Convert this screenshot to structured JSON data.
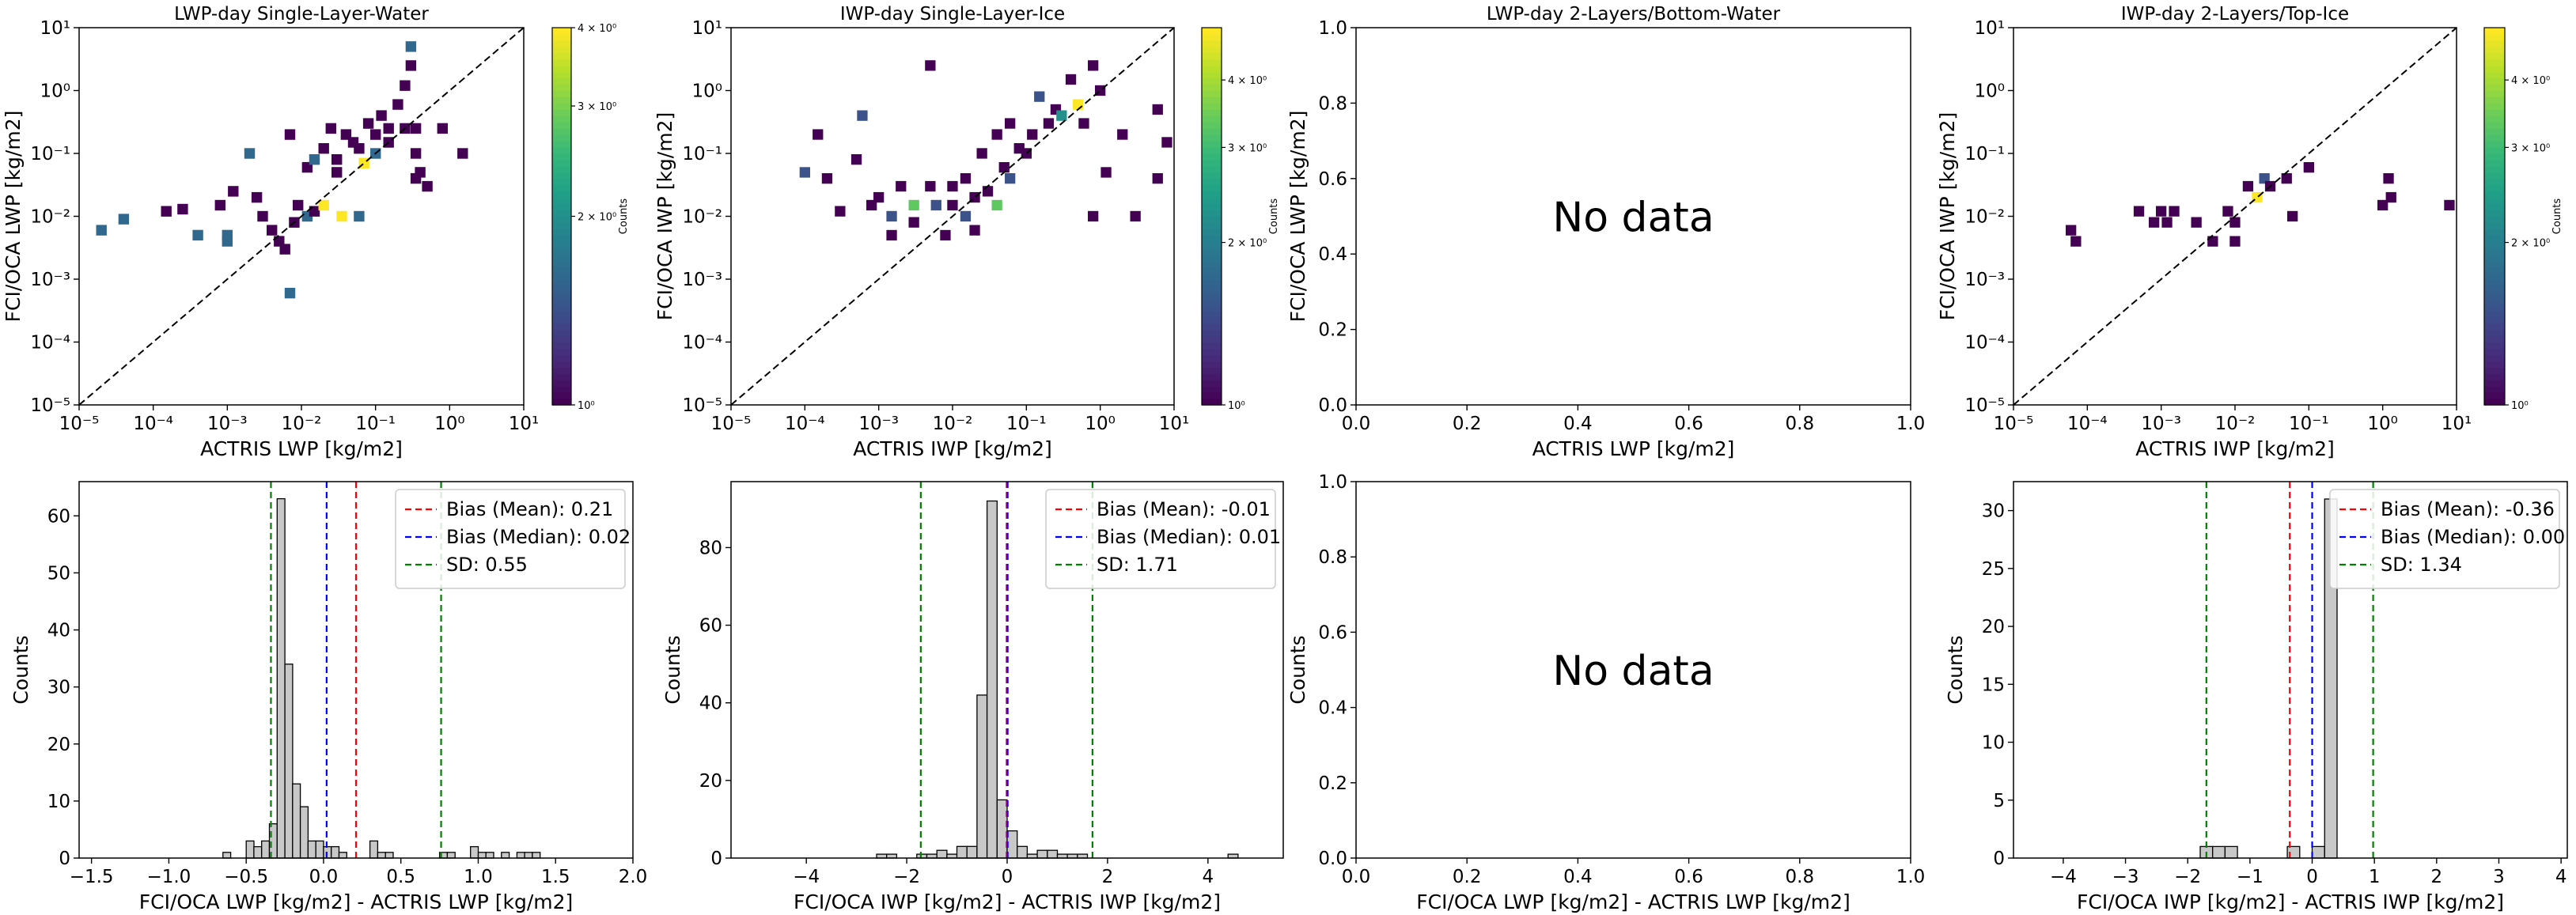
{
  "chart_data": [
    {
      "type": "heatmap",
      "title": "LWP-day Single-Layer-Water",
      "xlabel": "ACTRIS LWP [kg/m2]",
      "ylabel": "FCI/OCA LWP [kg/m2]",
      "xscale": "log",
      "yscale": "log",
      "xlim": [
        1e-05,
        10
      ],
      "ylim": [
        1e-05,
        10
      ],
      "xticks": [
        "10⁻⁵",
        "10⁻⁴",
        "10⁻³",
        "10⁻²",
        "10⁻¹",
        "10⁰",
        "10¹"
      ],
      "yticks": [
        "10⁻⁵",
        "10⁻⁴",
        "10⁻³",
        "10⁻²",
        "10⁻¹",
        "10⁰",
        "10¹"
      ],
      "one_to_one_line": true,
      "colorbar": {
        "label": "Counts",
        "ticks": [
          "10⁰",
          "2 × 10⁰",
          "3 × 10⁰",
          "4 × 10⁰"
        ],
        "range": [
          1,
          4
        ]
      },
      "cells": [
        [
          2e-05,
          0.006,
          2
        ],
        [
          4e-05,
          0.009,
          2
        ],
        [
          0.00015,
          0.012,
          1
        ],
        [
          0.00025,
          0.013,
          1
        ],
        [
          0.0004,
          0.005,
          2
        ],
        [
          0.0008,
          0.015,
          1
        ],
        [
          0.001,
          0.005,
          2
        ],
        [
          0.001,
          0.004,
          2
        ],
        [
          0.0012,
          0.025,
          1
        ],
        [
          0.002,
          0.1,
          2
        ],
        [
          0.0025,
          0.02,
          1
        ],
        [
          0.003,
          0.01,
          1
        ],
        [
          0.004,
          0.006,
          1
        ],
        [
          0.005,
          0.004,
          1
        ],
        [
          0.006,
          0.003,
          1
        ],
        [
          0.007,
          0.0006,
          2
        ],
        [
          0.007,
          0.2,
          1
        ],
        [
          0.008,
          0.008,
          1
        ],
        [
          0.009,
          0.015,
          1
        ],
        [
          0.012,
          0.01,
          2
        ],
        [
          0.012,
          0.06,
          1
        ],
        [
          0.015,
          0.012,
          1
        ],
        [
          0.015,
          0.08,
          2
        ],
        [
          0.02,
          0.015,
          4
        ],
        [
          0.02,
          0.12,
          1
        ],
        [
          0.025,
          0.25,
          1
        ],
        [
          0.03,
          0.05,
          1
        ],
        [
          0.03,
          0.08,
          1
        ],
        [
          0.035,
          0.01,
          4
        ],
        [
          0.04,
          0.2,
          1
        ],
        [
          0.05,
          0.15,
          1
        ],
        [
          0.06,
          0.01,
          2
        ],
        [
          0.06,
          0.12,
          1
        ],
        [
          0.07,
          0.07,
          4
        ],
        [
          0.08,
          0.3,
          1
        ],
        [
          0.1,
          0.2,
          1
        ],
        [
          0.1,
          0.1,
          2
        ],
        [
          0.12,
          0.4,
          1
        ],
        [
          0.15,
          0.15,
          1
        ],
        [
          0.15,
          0.25,
          1
        ],
        [
          0.2,
          0.6,
          1
        ],
        [
          0.25,
          0.25,
          1
        ],
        [
          0.3,
          2.5,
          1
        ],
        [
          0.3,
          5,
          2
        ],
        [
          0.25,
          1.2,
          1
        ],
        [
          0.35,
          0.25,
          1
        ],
        [
          0.35,
          0.1,
          1
        ],
        [
          0.4,
          0.05,
          1
        ],
        [
          0.5,
          0.03,
          1
        ],
        [
          0.8,
          0.25,
          1
        ],
        [
          1.5,
          0.1,
          1
        ],
        [
          0.35,
          0.04,
          1
        ]
      ]
    },
    {
      "type": "heatmap",
      "title": "IWP-day Single-Layer-Ice",
      "xlabel": "ACTRIS IWP [kg/m2]",
      "ylabel": "FCI/OCA IWP [kg/m2]",
      "xscale": "log",
      "yscale": "log",
      "xlim": [
        1e-05,
        10
      ],
      "ylim": [
        1e-05,
        10
      ],
      "xticks": [
        "10⁻⁵",
        "10⁻⁴",
        "10⁻³",
        "10⁻²",
        "10⁻¹",
        "10⁰",
        "10¹"
      ],
      "yticks": [
        "10⁻⁵",
        "10⁻⁴",
        "10⁻³",
        "10⁻²",
        "10⁻¹",
        "10⁰",
        "10¹"
      ],
      "one_to_one_line": true,
      "colorbar": {
        "label": "Counts",
        "ticks": [
          "10⁰",
          "2 × 10⁰",
          "3 × 10⁰",
          "4 × 10⁰"
        ],
        "range": [
          1,
          5
        ]
      },
      "cells": [
        [
          0.0001,
          0.05,
          2
        ],
        [
          0.00015,
          0.2,
          1
        ],
        [
          0.0002,
          0.04,
          1
        ],
        [
          0.0003,
          0.012,
          1
        ],
        [
          0.0005,
          0.08,
          1
        ],
        [
          0.0006,
          0.4,
          2
        ],
        [
          0.0008,
          0.015,
          1
        ],
        [
          0.001,
          0.02,
          1
        ],
        [
          0.0015,
          0.01,
          2
        ],
        [
          0.0015,
          0.005,
          1
        ],
        [
          0.002,
          0.03,
          1
        ],
        [
          0.003,
          0.015,
          4
        ],
        [
          0.003,
          0.008,
          1
        ],
        [
          0.005,
          2.5,
          1
        ],
        [
          0.005,
          0.03,
          1
        ],
        [
          0.006,
          0.015,
          2
        ],
        [
          0.008,
          0.005,
          1
        ],
        [
          0.01,
          0.03,
          1
        ],
        [
          0.01,
          0.015,
          1
        ],
        [
          0.015,
          0.04,
          1
        ],
        [
          0.015,
          0.01,
          2
        ],
        [
          0.02,
          0.02,
          1
        ],
        [
          0.02,
          0.006,
          1
        ],
        [
          0.025,
          0.1,
          1
        ],
        [
          0.03,
          0.025,
          1
        ],
        [
          0.04,
          0.015,
          4
        ],
        [
          0.04,
          0.2,
          1
        ],
        [
          0.05,
          0.06,
          1
        ],
        [
          0.06,
          0.04,
          2
        ],
        [
          0.06,
          0.3,
          1
        ],
        [
          0.08,
          0.12,
          1
        ],
        [
          0.1,
          0.1,
          1
        ],
        [
          0.12,
          0.2,
          1
        ],
        [
          0.15,
          0.8,
          2
        ],
        [
          0.2,
          0.3,
          1
        ],
        [
          0.25,
          0.5,
          1
        ],
        [
          0.3,
          0.4,
          3
        ],
        [
          0.4,
          1.5,
          1
        ],
        [
          0.5,
          0.6,
          5
        ],
        [
          0.6,
          0.3,
          1
        ],
        [
          0.8,
          2.5,
          1
        ],
        [
          1,
          1,
          1
        ],
        [
          1.2,
          0.05,
          1
        ],
        [
          2,
          0.2,
          1
        ],
        [
          3,
          0.01,
          1
        ],
        [
          6,
          0.5,
          1
        ],
        [
          8,
          0.15,
          1
        ],
        [
          6,
          0.04,
          1
        ],
        [
          0.8,
          0.01,
          1
        ]
      ]
    },
    {
      "type": "empty",
      "title": "LWP-day 2-Layers/Bottom-Water",
      "xlabel": "ACTRIS LWP [kg/m2]",
      "ylabel": "FCI/OCA LWP [kg/m2]",
      "xlim": [
        0,
        1
      ],
      "ylim": [
        0,
        1
      ],
      "xticks": [
        "0.0",
        "0.2",
        "0.4",
        "0.6",
        "0.8",
        "1.0"
      ],
      "yticks": [
        "0.0",
        "0.2",
        "0.4",
        "0.6",
        "0.8",
        "1.0"
      ],
      "annotation": "No data"
    },
    {
      "type": "heatmap",
      "title": "IWP-day 2-Layers/Top-Ice",
      "xlabel": "ACTRIS IWP [kg/m2]",
      "ylabel": "FCI/OCA IWP [kg/m2]",
      "xscale": "log",
      "yscale": "log",
      "xlim": [
        1e-05,
        10
      ],
      "ylim": [
        1e-05,
        10
      ],
      "xticks": [
        "10⁻⁵",
        "10⁻⁴",
        "10⁻³",
        "10⁻²",
        "10⁻¹",
        "10⁰",
        "10¹"
      ],
      "yticks": [
        "10⁻⁵",
        "10⁻⁴",
        "10⁻³",
        "10⁻²",
        "10⁻¹",
        "10⁰",
        "10¹"
      ],
      "one_to_one_line": true,
      "colorbar": {
        "label": "Counts",
        "ticks": [
          "10⁰",
          "2 × 10⁰",
          "3 × 10⁰",
          "4 × 10⁰"
        ],
        "range": [
          1,
          5
        ]
      },
      "cells": [
        [
          6e-05,
          0.006,
          1
        ],
        [
          7e-05,
          0.004,
          1
        ],
        [
          0.0005,
          0.012,
          1
        ],
        [
          0.0008,
          0.008,
          1
        ],
        [
          0.001,
          0.012,
          1
        ],
        [
          0.0012,
          0.008,
          1
        ],
        [
          0.0015,
          0.012,
          1
        ],
        [
          0.003,
          0.008,
          1
        ],
        [
          0.005,
          0.004,
          1
        ],
        [
          0.008,
          0.012,
          1
        ],
        [
          0.01,
          0.008,
          1
        ],
        [
          0.01,
          0.004,
          1
        ],
        [
          0.02,
          0.02,
          5
        ],
        [
          0.015,
          0.03,
          1
        ],
        [
          0.025,
          0.04,
          2
        ],
        [
          0.03,
          0.03,
          1
        ],
        [
          0.05,
          0.04,
          1
        ],
        [
          0.06,
          0.01,
          1
        ],
        [
          0.1,
          0.06,
          1
        ],
        [
          1.2,
          0.04,
          1
        ],
        [
          1.3,
          0.02,
          1
        ],
        [
          1,
          0.015,
          1
        ],
        [
          8,
          0.015,
          1
        ]
      ]
    },
    {
      "type": "bar",
      "subtype": "histogram",
      "xlabel": "FCI/OCA LWP [kg/m2] - ACTRIS LWP [kg/m2]",
      "ylabel": "Counts",
      "xlim": [
        -1.58,
        2.0
      ],
      "ylim": [
        0,
        66
      ],
      "xticks": [
        "−1.5",
        "−1.0",
        "−0.5",
        "0.0",
        "0.5",
        "1.0",
        "1.5",
        "2.0"
      ],
      "yticks": [
        "0",
        "10",
        "20",
        "30",
        "40",
        "50",
        "60"
      ],
      "bins": {
        "edges_start": -0.7,
        "width": 0.05,
        "counts": [
          0,
          1,
          0,
          0,
          3,
          2,
          3,
          6,
          63,
          34,
          13,
          9,
          3,
          3,
          2,
          2,
          1,
          0,
          0,
          0,
          3,
          1,
          1,
          0,
          0,
          0,
          0,
          0,
          0,
          1,
          1,
          0,
          0,
          2,
          1,
          1,
          0,
          1,
          0,
          1,
          1,
          1
        ]
      },
      "lines": [
        {
          "name": "Bias (Mean): 0.21",
          "x": 0.21,
          "color": "#ff0000"
        },
        {
          "name": "Bias (Median): 0.02",
          "x": 0.02,
          "color": "#0000ff"
        },
        {
          "name": "SD: 0.55",
          "x": 0.76,
          "color": "#008000"
        },
        {
          "x": -0.34,
          "color": "#008000"
        }
      ]
    },
    {
      "type": "bar",
      "subtype": "histogram",
      "xlabel": "FCI/OCA IWP [kg/m2] - ACTRIS IWP [kg/m2]",
      "ylabel": "Counts",
      "xlim": [
        -5.5,
        5.5
      ],
      "ylim": [
        0,
        97
      ],
      "xticks": [
        "−4",
        "−2",
        "0",
        "2",
        "4"
      ],
      "yticks": [
        "0",
        "20",
        "40",
        "60",
        "80"
      ],
      "bins": {
        "edges_start": -2.6,
        "width": 0.2,
        "counts": [
          1,
          1,
          0,
          0,
          1,
          1,
          2,
          1,
          3,
          3,
          42,
          92,
          15,
          7,
          3,
          1,
          2,
          2,
          1,
          1,
          1,
          0,
          0,
          0,
          0,
          0,
          0,
          0,
          0,
          0,
          0,
          0,
          0,
          0,
          0,
          1
        ]
      },
      "lines": [
        {
          "name": "Bias (Mean): -0.01",
          "x": -0.01,
          "color": "#ff0000"
        },
        {
          "name": "Bias (Median): 0.01",
          "x": 0.01,
          "color": "#0000ff"
        },
        {
          "name": "SD: 1.71",
          "x": 1.7,
          "color": "#008000"
        },
        {
          "x": -1.72,
          "color": "#008000"
        }
      ]
    },
    {
      "type": "empty",
      "xlabel": "FCI/OCA LWP [kg/m2] - ACTRIS LWP [kg/m2]",
      "ylabel": "Counts",
      "xlim": [
        0,
        1
      ],
      "ylim": [
        0,
        1
      ],
      "xticks": [
        "0.0",
        "0.2",
        "0.4",
        "0.6",
        "0.8",
        "1.0"
      ],
      "yticks": [
        "0.0",
        "0.2",
        "0.4",
        "0.6",
        "0.8",
        "1.0"
      ],
      "annotation": "No data"
    },
    {
      "type": "bar",
      "subtype": "histogram",
      "xlabel": "FCI/OCA IWP [kg/m2] - ACTRIS IWP [kg/m2]",
      "ylabel": "Counts",
      "xlim": [
        -4.8,
        4.1
      ],
      "ylim": [
        0,
        32.5
      ],
      "xticks": [
        "−4",
        "−3",
        "−2",
        "−1",
        "0",
        "1",
        "2",
        "3",
        "4"
      ],
      "yticks": [
        "0",
        "5",
        "10",
        "15",
        "20",
        "25",
        "30"
      ],
      "bins": {
        "edges_start": -1.8,
        "width": 0.2,
        "counts": [
          1,
          1,
          1,
          0,
          0,
          0,
          0,
          1,
          0,
          1,
          31
        ]
      },
      "lines": [
        {
          "name": "Bias (Mean): -0.36",
          "x": -0.36,
          "color": "#ff0000"
        },
        {
          "name": "Bias (Median): 0.00",
          "x": 0.0,
          "color": "#0000ff"
        },
        {
          "name": "SD: 1.34",
          "x": 0.98,
          "color": "#008000"
        },
        {
          "x": -1.7,
          "color": "#008000"
        }
      ]
    }
  ]
}
